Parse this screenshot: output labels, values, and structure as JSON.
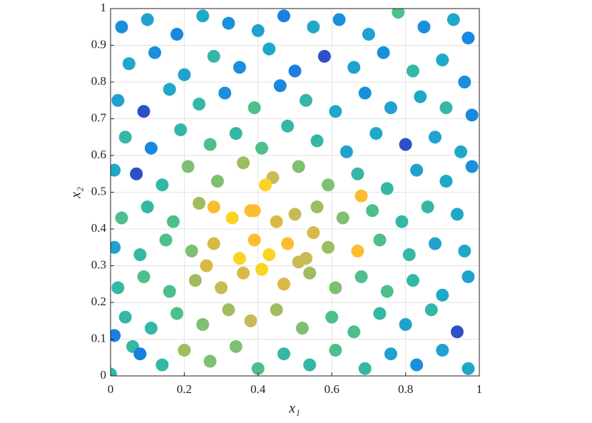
{
  "chart_data": {
    "type": "scatter",
    "xlabel": "x₁",
    "ylabel": "x₂",
    "xlim": [
      0,
      1
    ],
    "ylim": [
      0,
      1
    ],
    "xticks": [
      0,
      0.2,
      0.4,
      0.6,
      0.8,
      1
    ],
    "yticks": [
      0,
      0.1,
      0.2,
      0.3,
      0.4,
      0.5,
      0.6,
      0.7,
      0.8,
      0.9,
      1
    ],
    "grid": true,
    "x": [
      0.03,
      0.1,
      0.18,
      0.25,
      0.32,
      0.4,
      0.47,
      0.55,
      0.62,
      0.7,
      0.78,
      0.85,
      0.93,
      0.97,
      0.05,
      0.12,
      0.2,
      0.28,
      0.35,
      0.43,
      0.5,
      0.58,
      0.66,
      0.74,
      0.82,
      0.9,
      0.96,
      0.02,
      0.09,
      0.16,
      0.24,
      0.31,
      0.39,
      0.46,
      0.53,
      0.61,
      0.69,
      0.76,
      0.84,
      0.91,
      0.98,
      0.04,
      0.11,
      0.19,
      0.27,
      0.34,
      0.41,
      0.48,
      0.56,
      0.64,
      0.72,
      0.8,
      0.88,
      0.95,
      0.01,
      0.07,
      0.14,
      0.21,
      0.29,
      0.36,
      0.44,
      0.51,
      0.59,
      0.67,
      0.75,
      0.83,
      0.91,
      0.98,
      0.03,
      0.1,
      0.17,
      0.24,
      0.28,
      0.33,
      0.39,
      0.45,
      0.5,
      0.56,
      0.63,
      0.68,
      0.71,
      0.79,
      0.86,
      0.94,
      0.01,
      0.08,
      0.15,
      0.22,
      0.28,
      0.35,
      0.39,
      0.43,
      0.48,
      0.53,
      0.59,
      0.67,
      0.73,
      0.81,
      0.88,
      0.96,
      0.02,
      0.09,
      0.16,
      0.23,
      0.3,
      0.36,
      0.41,
      0.47,
      0.54,
      0.61,
      0.68,
      0.75,
      0.82,
      0.9,
      0.97,
      0.04,
      0.11,
      0.18,
      0.25,
      0.32,
      0.38,
      0.45,
      0.52,
      0.6,
      0.66,
      0.73,
      0.8,
      0.87,
      0.94,
      0.01,
      0.06,
      0.08,
      0.14,
      0.2,
      0.27,
      0.34,
      0.4,
      0.47,
      0.54,
      0.61,
      0.69,
      0.76,
      0.83,
      0.9,
      0.97,
      0.0,
      0.38,
      0.42,
      0.26,
      0.55,
      0.51
    ],
    "values": [
      0.95,
      0.97,
      0.93,
      0.98,
      0.96,
      0.94,
      0.98,
      0.95,
      0.97,
      0.93,
      0.99,
      0.95,
      0.97,
      0.92,
      0.85,
      0.88,
      0.82,
      0.87,
      0.84,
      0.89,
      0.83,
      0.87,
      0.84,
      0.88,
      0.83,
      0.86,
      0.8,
      0.75,
      0.72,
      0.78,
      0.74,
      0.77,
      0.73,
      0.79,
      0.75,
      0.72,
      0.77,
      0.73,
      0.76,
      0.73,
      0.71,
      0.65,
      0.62,
      0.67,
      0.63,
      0.66,
      0.62,
      0.68,
      0.64,
      0.61,
      0.66,
      0.63,
      0.65,
      0.61,
      0.56,
      0.55,
      0.52,
      0.57,
      0.53,
      0.58,
      0.54,
      0.57,
      0.52,
      0.55,
      0.51,
      0.56,
      0.53,
      0.57,
      0.43,
      0.46,
      0.42,
      0.47,
      0.46,
      0.43,
      0.45,
      0.42,
      0.44,
      0.46,
      0.43,
      0.49,
      0.45,
      0.42,
      0.46,
      0.44,
      0.35,
      0.33,
      0.37,
      0.34,
      0.36,
      0.32,
      0.37,
      0.33,
      0.36,
      0.32,
      0.35,
      0.34,
      0.37,
      0.33,
      0.36,
      0.34,
      0.24,
      0.27,
      0.23,
      0.26,
      0.24,
      0.28,
      0.29,
      0.25,
      0.28,
      0.24,
      0.27,
      0.23,
      0.26,
      0.22,
      0.27,
      0.16,
      0.13,
      0.17,
      0.14,
      0.18,
      0.15,
      0.18,
      0.13,
      0.16,
      0.12,
      0.17,
      0.14,
      0.18,
      0.12,
      0.11,
      0.08,
      0.06,
      0.03,
      0.07,
      0.04,
      0.08,
      0.02,
      0.06,
      0.03,
      0.07,
      0.02,
      0.06,
      0.03,
      0.07,
      0.02,
      0.005,
      0.45,
      0.52,
      0.3,
      0.39,
      0.31
    ],
    "colors": [
      "#1890dc",
      "#20a1d0",
      "#1a88de",
      "#1fa8c8",
      "#1890dc",
      "#20a1d0",
      "#1a7fe0",
      "#1fa8c8",
      "#1890dc",
      "#20a1d0",
      "#4dbf8b",
      "#1890dc",
      "#1fa8c8",
      "#1a88de",
      "#1fa8c8",
      "#1890dc",
      "#20a1d0",
      "#35b7a5",
      "#1890dc",
      "#1fa8c8",
      "#1a7fe0",
      "#2d50c8",
      "#20a1d0",
      "#1890dc",
      "#35b7a5",
      "#1fa8c8",
      "#1890dc",
      "#20a1d0",
      "#2d50c8",
      "#1fa8c8",
      "#35b7a5",
      "#1890dc",
      "#4dbf8b",
      "#1a88de",
      "#35b7a5",
      "#1fa8c8",
      "#1890dc",
      "#20a1d0",
      "#1fa8c8",
      "#35b7a5",
      "#1a88de",
      "#35b7a5",
      "#1a88de",
      "#35b7a5",
      "#4dbf8b",
      "#35b7a5",
      "#4dbf8b",
      "#35b7a5",
      "#35b7a5",
      "#20a1d0",
      "#1fa8c8",
      "#2d50c8",
      "#20a1d0",
      "#1fa8c8",
      "#1fa8c8",
      "#2d50c8",
      "#35b7a5",
      "#7fbf73",
      "#7fbf73",
      "#9ebd5e",
      "#c8bb55",
      "#7fbf73",
      "#7fbf73",
      "#35b7a5",
      "#35b7a5",
      "#20a1d0",
      "#1fa8c8",
      "#1890dc",
      "#4dbf8b",
      "#35b7a5",
      "#4dbf8b",
      "#9ebd5e",
      "#fbbd30",
      "#f9d423",
      "#fbbd30",
      "#d9b946",
      "#c8bb55",
      "#9ebd5e",
      "#7fbf73",
      "#fbbd30",
      "#4dbf8b",
      "#35b7a5",
      "#35b7a5",
      "#1fa8c8",
      "#20a1d0",
      "#35b7a5",
      "#4dbf8b",
      "#7fbf73",
      "#d9b946",
      "#f9d423",
      "#fbbd30",
      "#f9d423",
      "#fbbd30",
      "#c8bb55",
      "#9ebd5e",
      "#fbbd30",
      "#4dbf8b",
      "#35b7a5",
      "#20a1d0",
      "#1fa8c8",
      "#35b7a5",
      "#4dbf8b",
      "#4dbf8b",
      "#9ebd5e",
      "#c8bb55",
      "#d9b946",
      "#f9d423",
      "#d9b946",
      "#9ebd5e",
      "#7fbf73",
      "#4dbf8b",
      "#4dbf8b",
      "#35b7a5",
      "#1fa8c8",
      "#20a1d0",
      "#35b7a5",
      "#35b7a5",
      "#4dbf8b",
      "#7fbf73",
      "#9ebd5e",
      "#c8bb55",
      "#9ebd5e",
      "#7fbf73",
      "#4dbf8b",
      "#4dbf8b",
      "#35b7a5",
      "#20a1d0",
      "#35b7a5",
      "#2d50c8",
      "#1a7fe0",
      "#35b7a5",
      "#1a7fe0",
      "#35b7a5",
      "#9ebd5e",
      "#7fbf73",
      "#7fbf73",
      "#4dbf8b",
      "#35b7a5",
      "#35b7a5",
      "#4dbf8b",
      "#35b7a5",
      "#20a1d0",
      "#1890dc",
      "#20a1d0",
      "#1fa8c8",
      "#35b7a5",
      "#fbbd30",
      "#f9d423",
      "#d9b946",
      "#d9b946",
      "#c8bb55"
    ]
  }
}
